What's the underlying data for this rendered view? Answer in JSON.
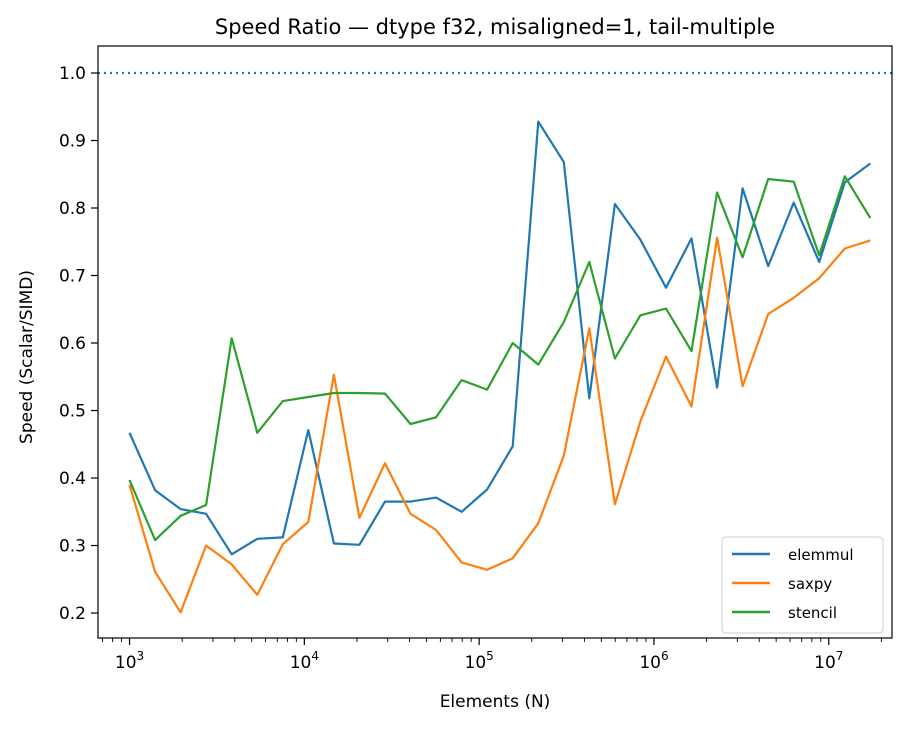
{
  "chart_data": {
    "type": "line",
    "title": "Speed Ratio — dtype f32, misaligned=1, tail-multiple",
    "xlabel": "Elements (N)",
    "ylabel": "Speed (Scalar/SIMD)",
    "xscale": "log",
    "xlim": [
      660,
      23000000
    ],
    "ylim": [
      0.163,
      1.04
    ],
    "x_ticks": [
      {
        "value": 1000,
        "base": "10",
        "exp": "3"
      },
      {
        "value": 10000,
        "base": "10",
        "exp": "4"
      },
      {
        "value": 100000,
        "base": "10",
        "exp": "5"
      },
      {
        "value": 1000000,
        "base": "10",
        "exp": "6"
      },
      {
        "value": 10000000,
        "base": "10",
        "exp": "7"
      }
    ],
    "y_ticks": [
      "0.2",
      "0.3",
      "0.4",
      "0.5",
      "0.6",
      "0.7",
      "0.8",
      "0.9",
      "1.0"
    ],
    "reference_line": {
      "y": 1.0,
      "style": "dotted",
      "color": "#1f77b4"
    },
    "grid": false,
    "legend_position": "lower right",
    "x": [
      1000,
      1400,
      1960,
      2740,
      3840,
      5380,
      7530,
      10540,
      14760,
      20660,
      28930,
      40500,
      56700,
      79380,
      111100,
      155600,
      217800,
      304900,
      426900,
      597700,
      836800,
      1171500,
      1640000,
      2296000,
      3215000,
      4501000,
      6301000,
      8821000,
      12350000,
      17290000
    ],
    "series": [
      {
        "name": "elemmul",
        "color": "#1f77b4",
        "values": [
          0.467,
          0.382,
          0.354,
          0.347,
          0.287,
          0.31,
          0.312,
          0.471,
          0.303,
          0.301,
          0.365,
          0.365,
          0.371,
          0.35,
          0.383,
          0.447,
          0.928,
          0.868,
          0.518,
          0.806,
          0.753,
          0.682,
          0.755,
          0.534,
          0.829,
          0.714,
          0.808,
          0.72,
          0.838,
          0.866
        ]
      },
      {
        "name": "saxpy",
        "color": "#ff7f0e",
        "values": [
          0.39,
          0.261,
          0.201,
          0.3,
          0.272,
          0.227,
          0.302,
          0.335,
          0.553,
          0.341,
          0.422,
          0.347,
          0.323,
          0.275,
          0.264,
          0.281,
          0.333,
          0.433,
          0.622,
          0.361,
          0.484,
          0.58,
          0.506,
          0.756,
          0.536,
          0.643,
          0.667,
          0.696,
          0.74,
          0.752
        ]
      },
      {
        "name": "stencil",
        "color": "#2ca02c",
        "values": [
          0.397,
          0.308,
          0.344,
          0.36,
          0.607,
          0.467,
          0.514,
          0.52,
          0.526,
          0.526,
          0.525,
          0.48,
          0.49,
          0.545,
          0.531,
          0.6,
          0.568,
          0.631,
          0.72,
          0.577,
          0.641,
          0.651,
          0.588,
          0.823,
          0.727,
          0.843,
          0.839,
          0.73,
          0.847,
          0.785
        ]
      }
    ]
  }
}
